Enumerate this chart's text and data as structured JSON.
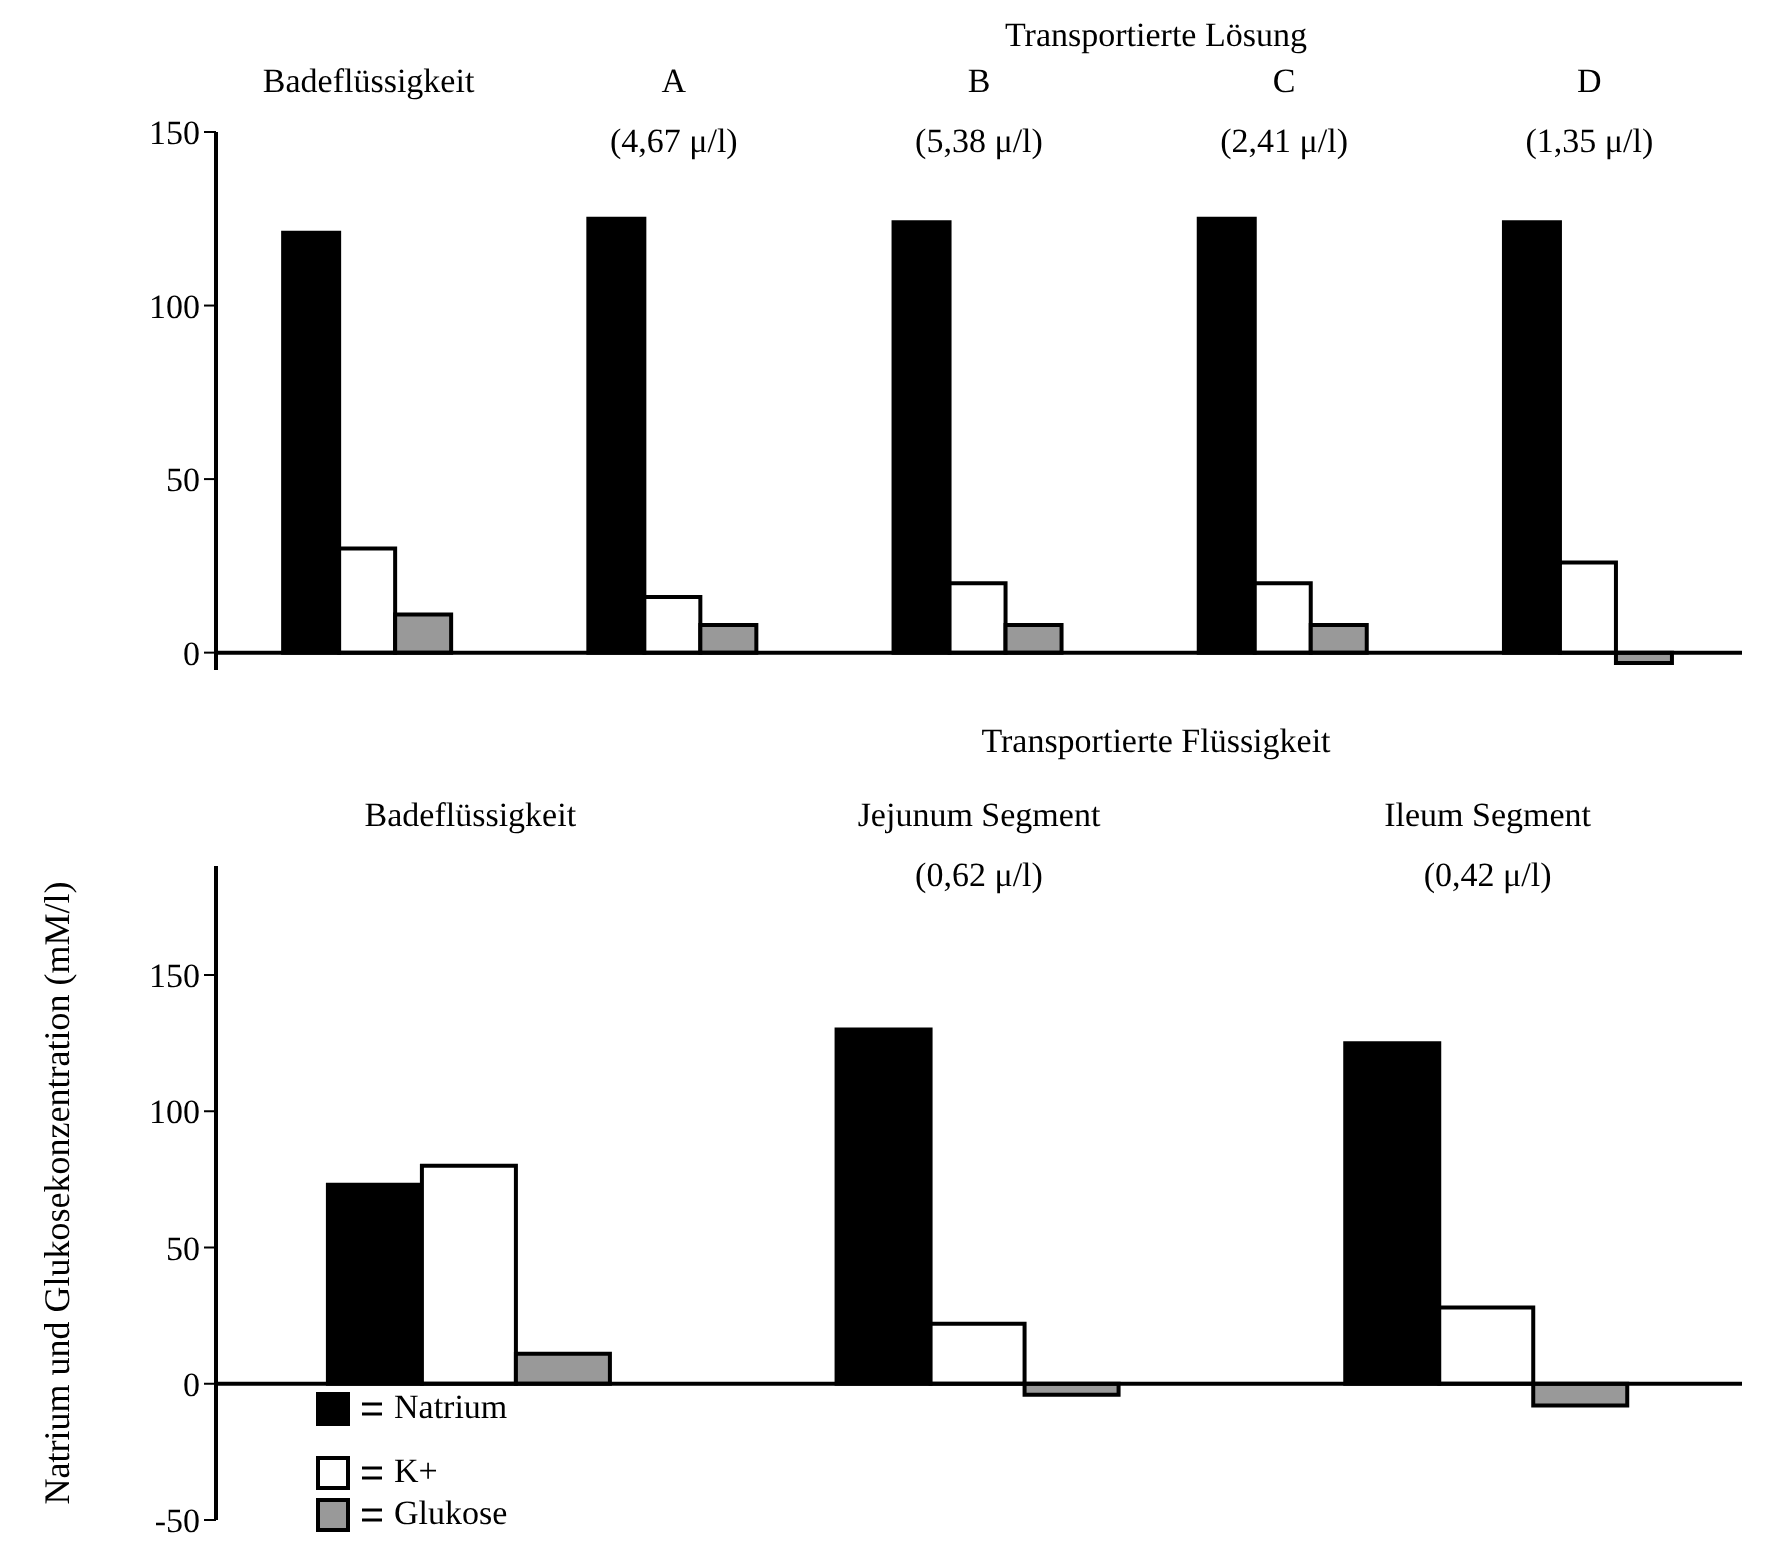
{
  "chart_data": [
    {
      "type": "bar",
      "title": "Transportierte Lösung",
      "categories": [
        "Badeflüssigkeit",
        "A",
        "B",
        "C",
        "D"
      ],
      "series": [
        {
          "color": "#000000",
          "values": [
            121,
            125,
            124,
            125,
            124
          ]
        },
        {
          "color": "#ffffff",
          "values": [
            30,
            16,
            20,
            20,
            26
          ]
        },
        {
          "color": "#999999",
          "values": [
            11,
            8,
            8,
            8,
            -3
          ]
        }
      ],
      "ylim": [
        -5,
        150
      ],
      "yticks": [
        0,
        50,
        100,
        150
      ],
      "annotations": [
        "(4,67 μ/l)",
        "(5,38 μ/l)",
        "(2,41 μ/l)",
        "(1,35 μ/l)"
      ]
    },
    {
      "type": "bar",
      "title": "Transportierte Flüssigkeit",
      "ylabel": "Natrium und Glukosekonzentration (mM/l)",
      "categories": [
        "Badeflüssigkeit",
        "Jejunum Segment",
        "Ileum Segment"
      ],
      "series": [
        {
          "name": "Natrium",
          "color": "#000000",
          "values": [
            73,
            130,
            125
          ]
        },
        {
          "name": "K+",
          "color": "#ffffff",
          "values": [
            80,
            22,
            28
          ]
        },
        {
          "name": "Glukose",
          "color": "#999999",
          "values": [
            11,
            -4,
            -8
          ]
        }
      ],
      "ylim": [
        -50,
        190
      ],
      "yticks": [
        -50,
        0,
        50,
        100,
        150
      ],
      "legend": "bottom left",
      "annotations": [
        "(0,62 μ/l)",
        "(0,42 μ/l)"
      ]
    }
  ]
}
